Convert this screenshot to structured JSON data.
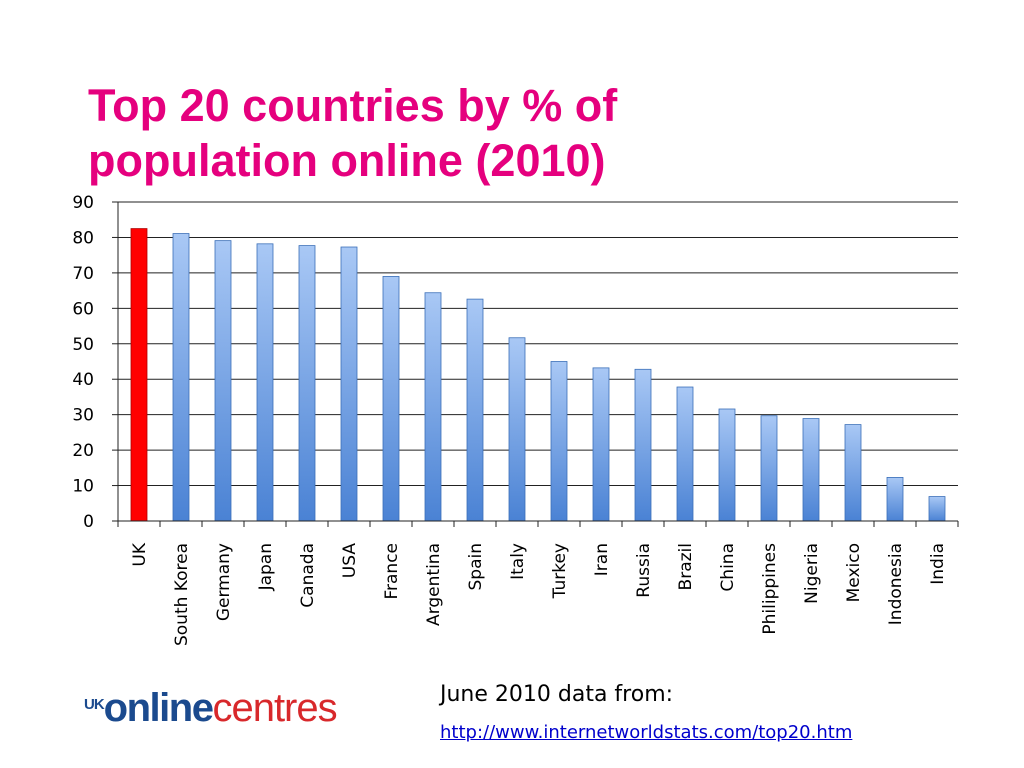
{
  "slide": {
    "title": "Top 20 countries by % of population online (2010)"
  },
  "chart_data": {
    "type": "bar",
    "title": "",
    "xlabel": "",
    "ylabel": "",
    "ylim": [
      0,
      90
    ],
    "yticks": [
      0,
      10,
      20,
      30,
      40,
      50,
      60,
      70,
      80,
      90
    ],
    "grid": true,
    "legend": "none",
    "categories": [
      "UK",
      "South Korea",
      "Germany",
      "Japan",
      "Canada",
      "USA",
      "France",
      "Argentina",
      "Spain",
      "Italy",
      "Turkey",
      "Iran",
      "Russia",
      "Brazil",
      "China",
      "Philippines",
      "Nigeria",
      "Mexico",
      "Indonesia",
      "India"
    ],
    "values": [
      82.5,
      81.1,
      79.1,
      78.2,
      77.7,
      77.3,
      69.0,
      64.4,
      62.6,
      51.7,
      45.0,
      43.2,
      42.8,
      37.8,
      31.6,
      29.7,
      28.9,
      27.2,
      12.3,
      6.9
    ],
    "highlight_index": 0,
    "colors": {
      "highlight": "#ff0000",
      "bar_top": "#a9c8f5",
      "bar_bottom": "#4a82d4",
      "bar_edge": "#3b6fb8",
      "grid": "#222222"
    }
  },
  "footer": {
    "logo": {
      "part1": "UK",
      "part2": "online",
      "part3": "centres"
    },
    "source_label": "June 2010 data from:",
    "source_url": "http://www.internetworldstats.com/top20.htm"
  }
}
